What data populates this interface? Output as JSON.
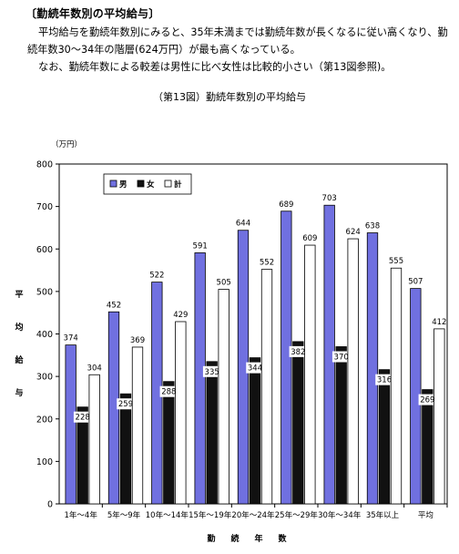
{
  "heading": "〔勤続年数別の平均給与〕",
  "paragraphs": [
    "平均給与を勤続年数別にみると、35年未満までは勤続年数が長くなるに従い高くなり、勤続年数30～34年の階層(624万円）が最も高くなっている。",
    "なお、勤続年数による較差は男性に比べ女性は比較的小さい（第13図参照)。"
  ],
  "caption": "（第13図）勤続年数別の平均給与",
  "chart_data": {
    "type": "bar",
    "unit_label": "（万円）",
    "ylabel": "平均給与",
    "xlabel": "勤続年数",
    "ylim": [
      0,
      800
    ],
    "ytick_step": 100,
    "categories": [
      "1年～4年",
      "5年～9年",
      "10年～14年",
      "15年～19年",
      "20年～24年",
      "25年～29年",
      "30年～34年",
      "35年以上",
      "平均"
    ],
    "series": [
      {
        "name": "男",
        "color": "#7070e0",
        "values": [
          374,
          452,
          522,
          591,
          644,
          689,
          703,
          638,
          507
        ]
      },
      {
        "name": "女",
        "color": "#111111",
        "values": [
          228,
          259,
          288,
          335,
          344,
          382,
          370,
          316,
          269
        ]
      },
      {
        "name": "計",
        "color": "#ffffff",
        "values": [
          304,
          369,
          429,
          505,
          552,
          609,
          624,
          555,
          412
        ]
      }
    ],
    "legend_position": "top-left",
    "grid": false
  }
}
